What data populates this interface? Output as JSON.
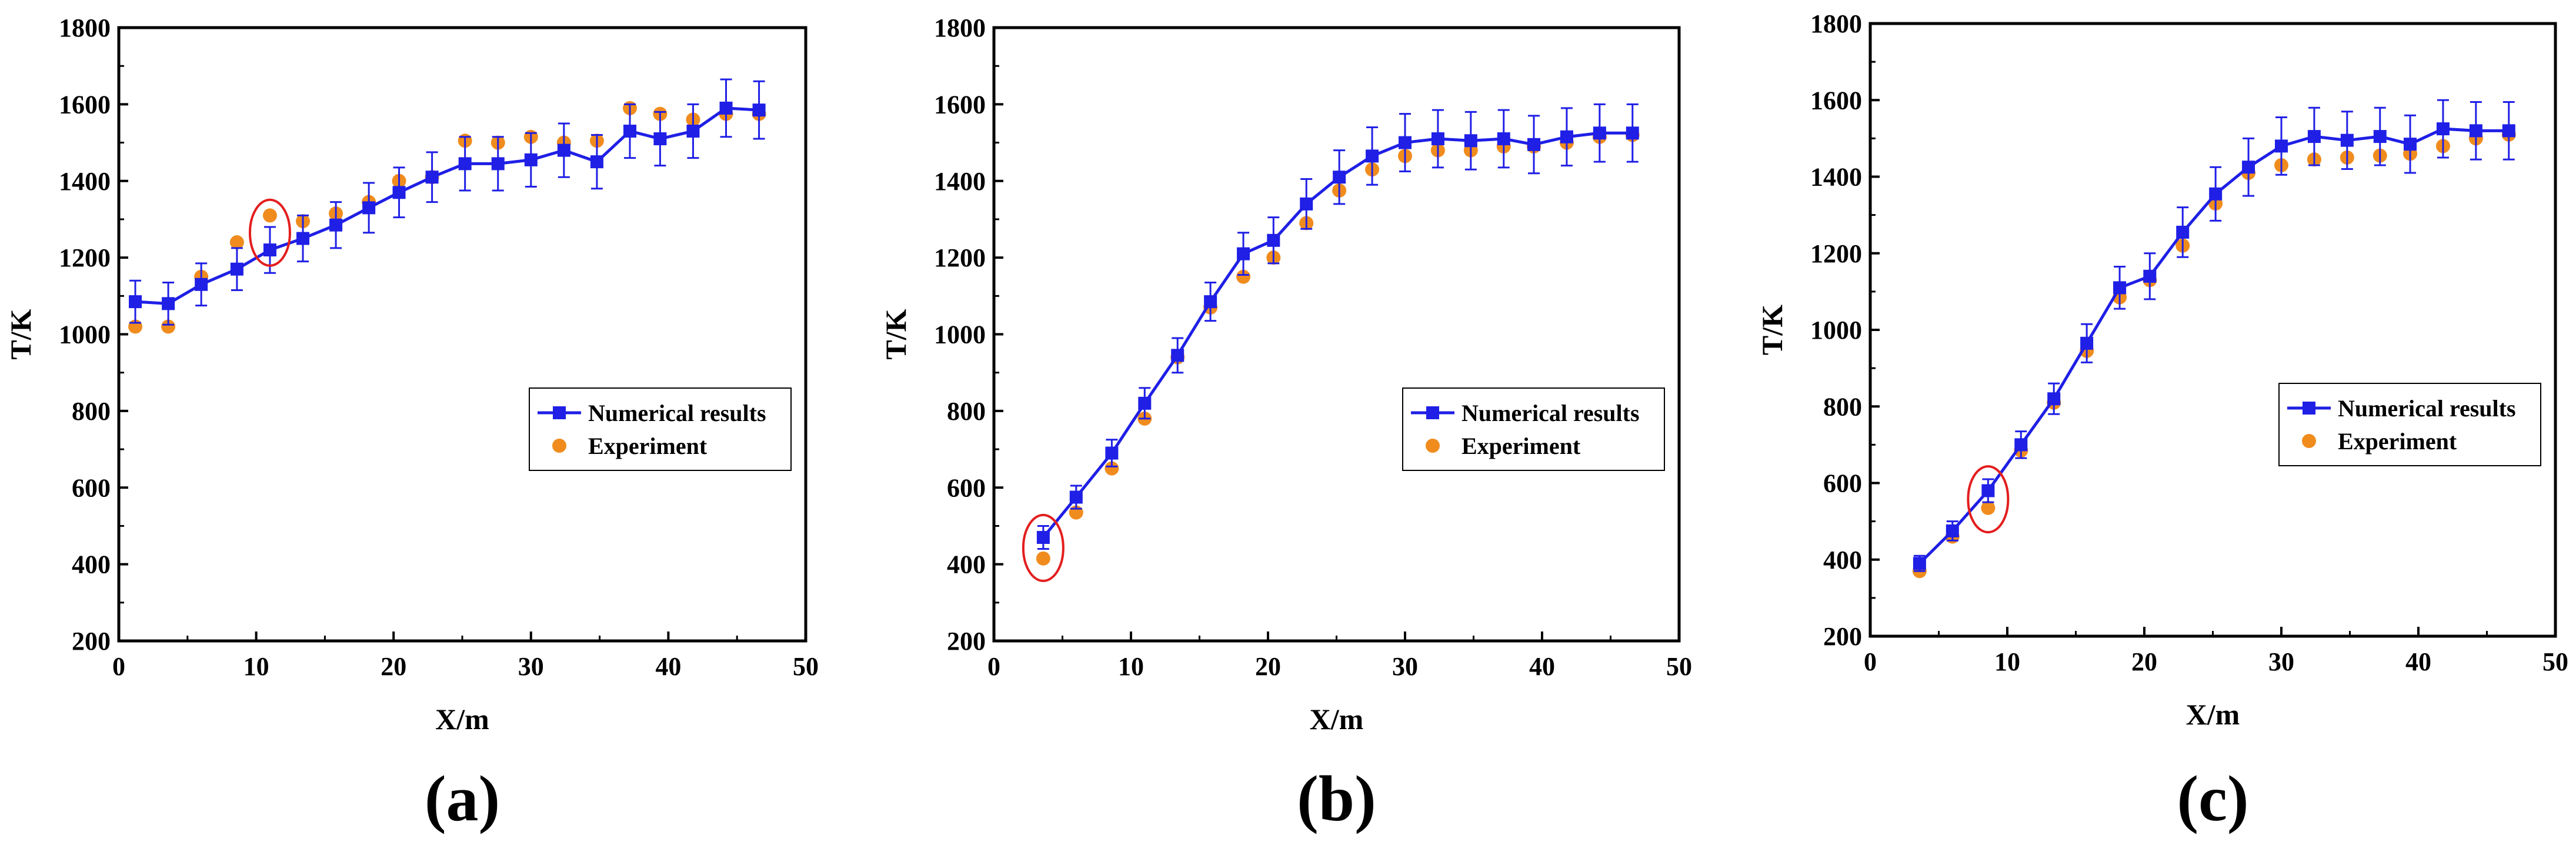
{
  "colors": {
    "numerical": "#1f1fe6",
    "experiment": "#f08c1e",
    "highlight": "#e31e1e",
    "axis": "#000000"
  },
  "chart_data": [
    {
      "type": "line",
      "panel_label": "(a)",
      "xlabel": "X/m",
      "ylabel": "T/K",
      "xlim": [
        0,
        50
      ],
      "ylim": [
        200,
        1800
      ],
      "xticks": [
        "0",
        "10",
        "20",
        "30",
        "40",
        "50"
      ],
      "yticks": [
        "200",
        "400",
        "600",
        "800",
        "1000",
        "1200",
        "1400",
        "1600",
        "1800"
      ],
      "legend": [
        "Numerical results",
        "Experiment"
      ],
      "legend_position": "lower-right",
      "highlight_index": 4,
      "series": [
        {
          "name": "Numerical results",
          "x": [
            1.2,
            3.6,
            6,
            8.6,
            11,
            13.4,
            15.8,
            18.2,
            20.4,
            22.8,
            25.2,
            27.6,
            30,
            32.4,
            34.8,
            37.2,
            39.4,
            41.8,
            44.2,
            46.6
          ],
          "y": [
            1085,
            1080,
            1130,
            1170,
            1220,
            1250,
            1285,
            1330,
            1370,
            1410,
            1445,
            1445,
            1455,
            1480,
            1450,
            1530,
            1510,
            1530,
            1590,
            1585
          ],
          "error": [
            55,
            55,
            55,
            55,
            60,
            60,
            60,
            65,
            65,
            65,
            70,
            70,
            70,
            70,
            70,
            70,
            70,
            70,
            75,
            75
          ]
        },
        {
          "name": "Experiment",
          "x": [
            1.2,
            3.6,
            6,
            8.6,
            11,
            13.4,
            15.8,
            18.2,
            20.4,
            22.8,
            25.2,
            27.6,
            30,
            32.4,
            34.8,
            37.2,
            39.4,
            41.8,
            44.2,
            46.6
          ],
          "y": [
            1020,
            1020,
            1150,
            1240,
            1310,
            1295,
            1315,
            1345,
            1400,
            1410,
            1505,
            1500,
            1515,
            1500,
            1505,
            1590,
            1575,
            1560,
            1575,
            1575
          ]
        }
      ]
    },
    {
      "type": "line",
      "panel_label": "(b)",
      "xlabel": "X/m",
      "ylabel": "T/K",
      "xlim": [
        0,
        50
      ],
      "ylim": [
        200,
        1800
      ],
      "xticks": [
        "0",
        "10",
        "20",
        "30",
        "40",
        "50"
      ],
      "yticks": [
        "200",
        "400",
        "600",
        "800",
        "1000",
        "1200",
        "1400",
        "1600",
        "1800"
      ],
      "legend": [
        "Numerical results",
        "Experiment"
      ],
      "legend_position": "lower-right",
      "highlight_index": 0,
      "series": [
        {
          "name": "Numerical results",
          "x": [
            3.6,
            6,
            8.6,
            11,
            13.4,
            15.8,
            18.2,
            20.4,
            22.8,
            25.2,
            27.6,
            30,
            32.4,
            34.8,
            37.2,
            39.4,
            41.8,
            44.2,
            46.6
          ],
          "y": [
            470,
            575,
            690,
            820,
            945,
            1085,
            1210,
            1245,
            1340,
            1410,
            1465,
            1500,
            1510,
            1505,
            1510,
            1495,
            1515,
            1525,
            1525
          ],
          "error": [
            30,
            30,
            35,
            40,
            45,
            50,
            55,
            60,
            65,
            70,
            75,
            75,
            75,
            75,
            75,
            75,
            75,
            75,
            75
          ]
        },
        {
          "name": "Experiment",
          "x": [
            3.6,
            6,
            8.6,
            11,
            13.4,
            15.8,
            18.2,
            20.4,
            22.8,
            25.2,
            27.6,
            30,
            32.4,
            34.8,
            37.2,
            39.4,
            41.8,
            44.2,
            46.6
          ],
          "y": [
            415,
            535,
            650,
            780,
            940,
            1070,
            1150,
            1200,
            1290,
            1375,
            1430,
            1465,
            1480,
            1480,
            1490,
            1490,
            1500,
            1515,
            1520
          ]
        }
      ]
    },
    {
      "type": "line",
      "panel_label": "(c)",
      "xlabel": "X/m",
      "ylabel": "T/K",
      "xlim": [
        0,
        50
      ],
      "ylim": [
        200,
        1800
      ],
      "xticks": [
        "0",
        "10",
        "20",
        "30",
        "40",
        "50"
      ],
      "yticks": [
        "200",
        "400",
        "600",
        "800",
        "1000",
        "1200",
        "1400",
        "1600",
        "1800"
      ],
      "legend": [
        "Numerical results",
        "Experiment"
      ],
      "legend_position": "lower-right",
      "highlight_index": 2,
      "series": [
        {
          "name": "Numerical results",
          "x": [
            3.6,
            6,
            8.6,
            11,
            13.4,
            15.8,
            18.2,
            20.4,
            22.8,
            25.2,
            27.6,
            30,
            32.4,
            34.8,
            37.2,
            39.4,
            41.8,
            44.2,
            46.6
          ],
          "y": [
            390,
            475,
            580,
            700,
            820,
            965,
            1110,
            1140,
            1255,
            1355,
            1425,
            1480,
            1505,
            1495,
            1505,
            1485,
            1525,
            1520,
            1520
          ],
          "error": [
            20,
            25,
            30,
            35,
            40,
            50,
            55,
            60,
            65,
            70,
            75,
            75,
            75,
            75,
            75,
            75,
            75,
            75,
            75
          ]
        },
        {
          "name": "Experiment",
          "x": [
            3.6,
            6,
            8.6,
            11,
            13.4,
            15.8,
            18.2,
            20.4,
            22.8,
            25.2,
            27.6,
            30,
            32.4,
            34.8,
            37.2,
            39.4,
            41.8,
            44.2,
            46.6
          ],
          "y": [
            370,
            460,
            535,
            685,
            810,
            945,
            1085,
            1130,
            1220,
            1330,
            1410,
            1430,
            1445,
            1450,
            1455,
            1460,
            1480,
            1500,
            1510
          ]
        }
      ]
    }
  ]
}
